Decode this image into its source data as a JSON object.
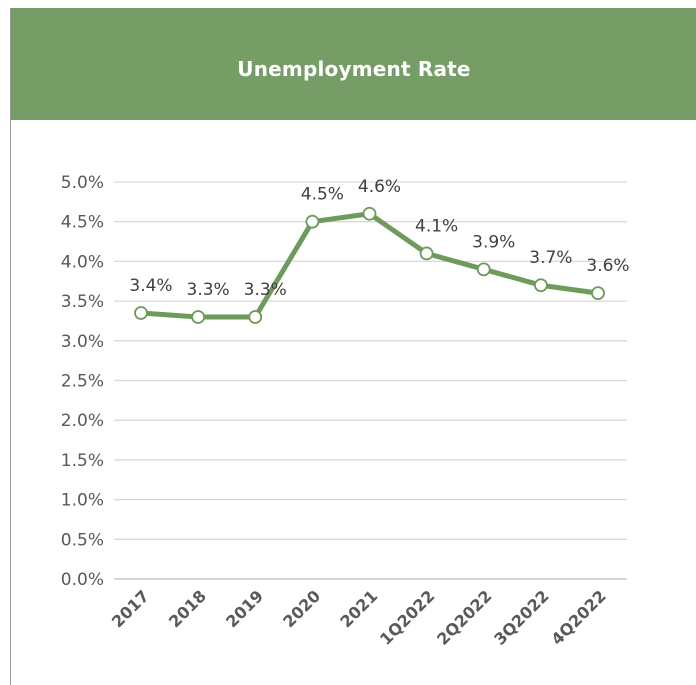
{
  "chart_data": {
    "type": "line",
    "title": "Unemployment Rate",
    "xlabel": "",
    "ylabel": "",
    "categories": [
      "2017",
      "2018",
      "2019",
      "2020",
      "2021",
      "1Q2022",
      "2Q2022",
      "3Q2022",
      "4Q2022"
    ],
    "values": [
      3.35,
      3.3,
      3.3,
      4.5,
      4.6,
      4.1,
      3.9,
      3.7,
      3.6
    ],
    "data_labels": [
      "3.4%",
      "3.3%",
      "3.3%",
      "4.5%",
      "4.6%",
      "4.1%",
      "3.9%",
      "3.7%",
      "3.6%"
    ],
    "ylim": [
      0,
      5.0
    ],
    "yticks": [
      "0.0%",
      "0.5%",
      "1.0%",
      "1.5%",
      "2.0%",
      "2.5%",
      "3.0%",
      "3.5%",
      "4.0%",
      "4.5%",
      "5.0%"
    ],
    "grid": true,
    "legend": "none",
    "colors": {
      "line": "#6e9a5c",
      "header": "#769d66",
      "marker_fill": "#ffffff",
      "grid": "#d9d9d9"
    }
  }
}
